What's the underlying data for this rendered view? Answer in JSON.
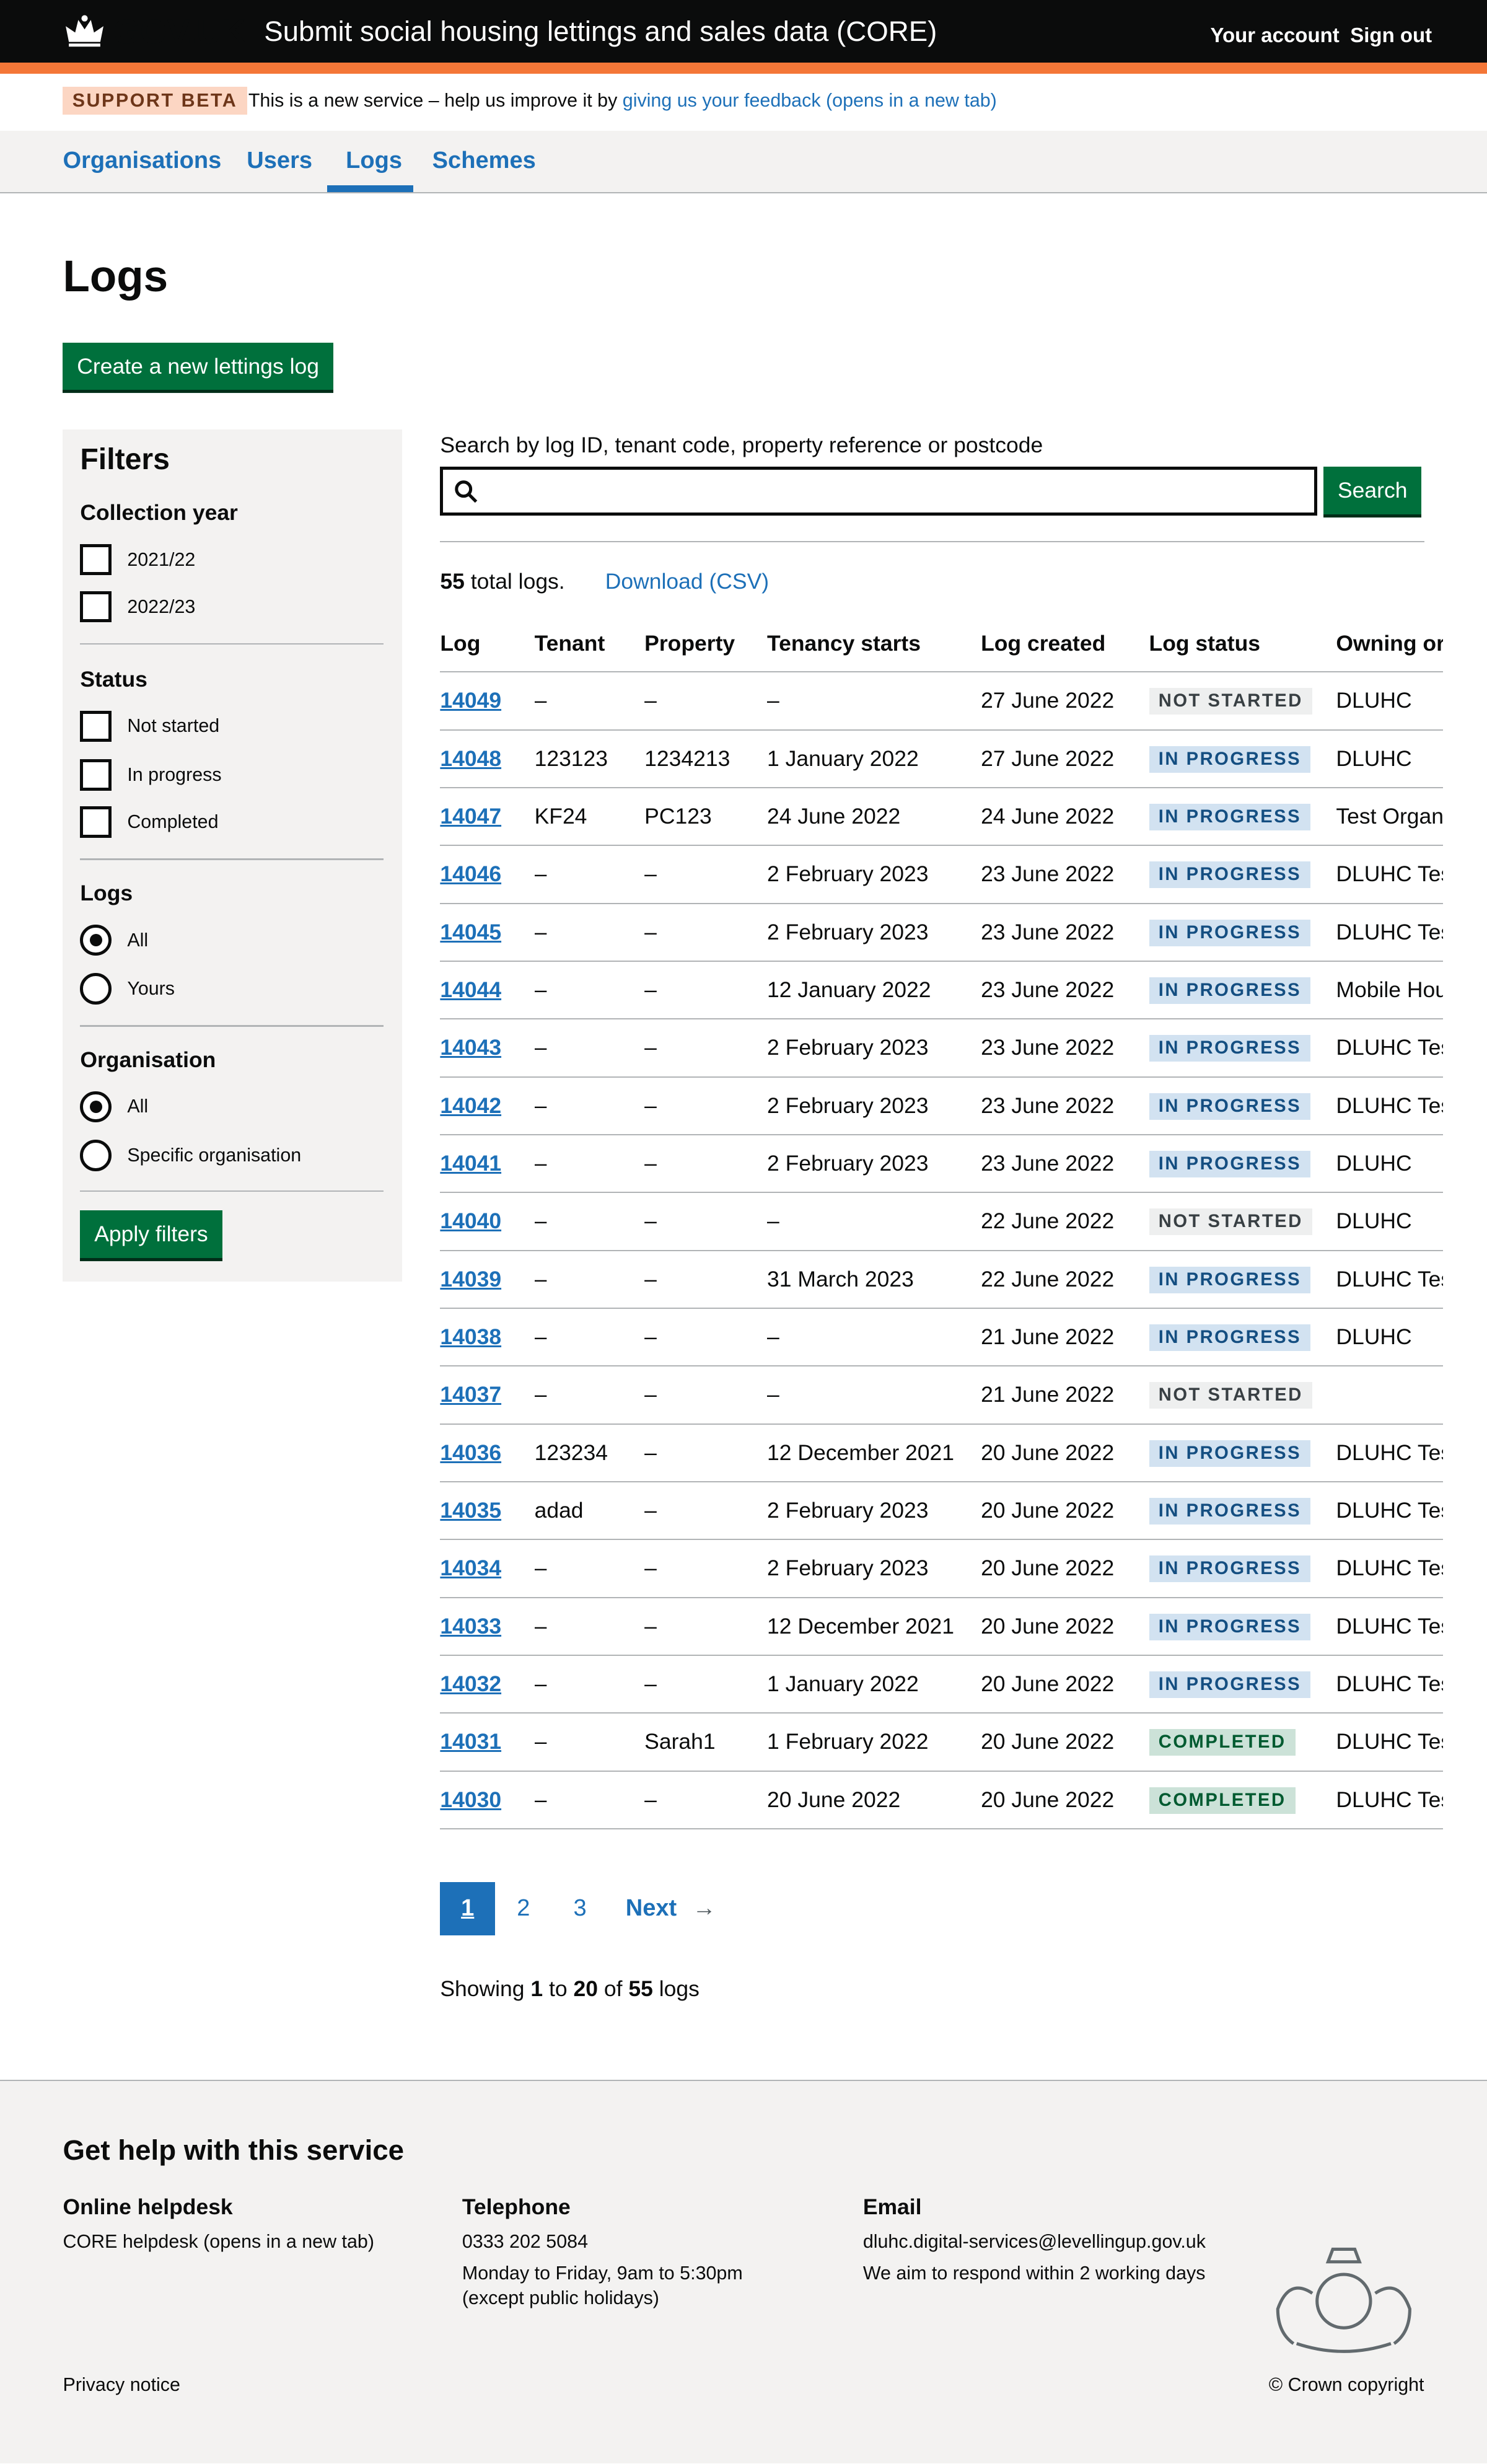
{
  "header": {
    "logo": "GOV.UK",
    "service": "Submit social housing lettings and sales data (CORE)",
    "your_account": "Your account",
    "sign_out": "Sign out"
  },
  "banner": {
    "tag": "SUPPORT BETA",
    "text": "This is a new service – help us improve it by ",
    "link": "giving us your feedback (opens in a new tab)"
  },
  "nav": {
    "items": [
      {
        "label": "Organisations"
      },
      {
        "label": "Users"
      },
      {
        "label": "Logs",
        "active": true
      },
      {
        "label": "Schemes"
      }
    ]
  },
  "page": {
    "title": "Logs",
    "create_button": "Create a new lettings log"
  },
  "filters": {
    "title": "Filters",
    "collection_year": {
      "label": "Collection year",
      "options": [
        "2021/22",
        "2022/23"
      ]
    },
    "status": {
      "label": "Status",
      "options": [
        "Not started",
        "In progress",
        "Completed"
      ]
    },
    "logs": {
      "label": "Logs",
      "options": [
        "All",
        "Yours"
      ],
      "selected": "All"
    },
    "organisation": {
      "label": "Organisation",
      "options": [
        "All",
        "Specific organisation"
      ],
      "selected": "All"
    },
    "apply": "Apply filters"
  },
  "search": {
    "label": "Search by log ID, tenant code, property reference or postcode",
    "value": "",
    "button": "Search"
  },
  "summary": {
    "count": "55",
    "text": " total logs.",
    "download": "Download (CSV)"
  },
  "table": {
    "headers": [
      "Log",
      "Tenant",
      "Property",
      "Tenancy starts",
      "Log created",
      "Log status",
      "Owning or"
    ],
    "rows": [
      [
        "14049",
        "–",
        "–",
        "–",
        "27 June 2022",
        "NOT STARTED",
        "DLUHC"
      ],
      [
        "14048",
        "123123",
        "1234213",
        "1 January 2022",
        "27 June 2022",
        "IN PROGRESS",
        "DLUHC"
      ],
      [
        "14047",
        "KF24",
        "PC123",
        "24 June 2022",
        "24 June 2022",
        "IN PROGRESS",
        "Test Organ"
      ],
      [
        "14046",
        "–",
        "–",
        "2 February 2023",
        "23 June 2022",
        "IN PROGRESS",
        "DLUHC Tes"
      ],
      [
        "14045",
        "–",
        "–",
        "2 February 2023",
        "23 June 2022",
        "IN PROGRESS",
        "DLUHC Tes"
      ],
      [
        "14044",
        "–",
        "–",
        "12 January 2022",
        "23 June 2022",
        "IN PROGRESS",
        "Mobile Hou"
      ],
      [
        "14043",
        "–",
        "–",
        "2 February 2023",
        "23 June 2022",
        "IN PROGRESS",
        "DLUHC Tes"
      ],
      [
        "14042",
        "–",
        "–",
        "2 February 2023",
        "23 June 2022",
        "IN PROGRESS",
        "DLUHC Tes"
      ],
      [
        "14041",
        "–",
        "–",
        "2 February 2023",
        "23 June 2022",
        "IN PROGRESS",
        "DLUHC"
      ],
      [
        "14040",
        "–",
        "–",
        "–",
        "22 June 2022",
        "NOT STARTED",
        "DLUHC"
      ],
      [
        "14039",
        "–",
        "–",
        "31 March 2023",
        "22 June 2022",
        "IN PROGRESS",
        "DLUHC Tes"
      ],
      [
        "14038",
        "–",
        "–",
        "–",
        "21 June 2022",
        "IN PROGRESS",
        "DLUHC"
      ],
      [
        "14037",
        "–",
        "–",
        "–",
        "21 June 2022",
        "NOT STARTED",
        ""
      ],
      [
        "14036",
        "123234",
        "–",
        "12 December 2021",
        "20 June 2022",
        "IN PROGRESS",
        "DLUHC Tes"
      ],
      [
        "14035",
        "adad",
        "–",
        "2 February 2023",
        "20 June 2022",
        "IN PROGRESS",
        "DLUHC Tes"
      ],
      [
        "14034",
        "–",
        "–",
        "2 February 2023",
        "20 June 2022",
        "IN PROGRESS",
        "DLUHC Tes"
      ],
      [
        "14033",
        "–",
        "–",
        "12 December 2021",
        "20 June 2022",
        "IN PROGRESS",
        "DLUHC Tes"
      ],
      [
        "14032",
        "–",
        "–",
        "1 January 2022",
        "20 June 2022",
        "IN PROGRESS",
        "DLUHC Tes"
      ],
      [
        "14031",
        "–",
        "Sarah1",
        "1 February 2022",
        "20 June 2022",
        "COMPLETED",
        "DLUHC Tes"
      ],
      [
        "14030",
        "–",
        "–",
        "20 June 2022",
        "20 June 2022",
        "COMPLETED",
        "DLUHC Tes"
      ]
    ]
  },
  "status_colors": {
    "NOT STARTED": {
      "bg": "#eeefef",
      "fg": "#383f43"
    },
    "IN PROGRESS": {
      "bg": "#d2e2f1",
      "fg": "#144e81"
    },
    "COMPLETED": {
      "bg": "#cce2d8",
      "fg": "#005a30"
    }
  },
  "pagination": {
    "pages": [
      "1",
      "2",
      "3"
    ],
    "current": "1",
    "next": "Next"
  },
  "showing": {
    "a": "Showing ",
    "from": "1",
    "b": " to ",
    "to": "20",
    "c": " of ",
    "total": "55",
    "d": " logs"
  },
  "footer": {
    "title": "Get help with this service",
    "helpdesk": {
      "heading": "Online helpdesk",
      "link": "CORE helpdesk (opens in a new tab)"
    },
    "telephone": {
      "heading": "Telephone",
      "number": "0333 202 5084",
      "hours": "Monday to Friday, 9am to 5:30pm",
      "note": "(except public holidays)"
    },
    "email": {
      "heading": "Email",
      "address": "dluhc.digital-services@levellingup.gov.uk",
      "note": "We aim to respond within 2 working days"
    },
    "privacy": "Privacy notice",
    "copyright": "© Crown copyright"
  }
}
